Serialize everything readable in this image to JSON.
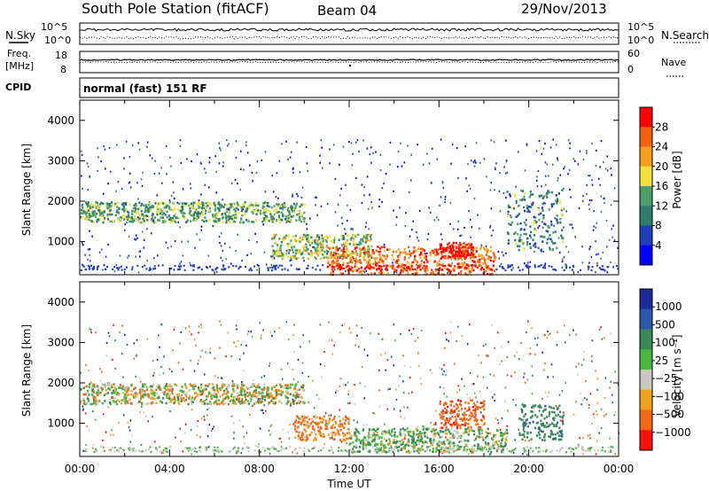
{
  "header": {
    "station": "South Pole Station (fitACF)",
    "beam": "Beam 04",
    "date": "29/Nov/2013"
  },
  "top_panels": {
    "nsky_label": "N.Sky",
    "nsearch_label": "N.Search",
    "nsky_ticks": [
      "10^5",
      "10^0"
    ],
    "nsearch_ticks": [
      "10^5",
      "10^0"
    ],
    "freq_label_1": "Freq.",
    "freq_label_2": "[MHz]",
    "freq_ticks": [
      "18",
      "8"
    ],
    "nave_label": "Nave",
    "nave_ticks": [
      "60",
      "0"
    ],
    "cpid_label": "CPID",
    "cpid_value": "normal (fast) 151 RF"
  },
  "chart_data": [
    {
      "type": "heatmap",
      "name": "power",
      "xlabel": "",
      "ylabel": "Slant Range [km]",
      "x_range_hours": [
        0,
        24
      ],
      "ylim": [
        180,
        4500
      ],
      "yticks": [
        1000,
        2000,
        3000,
        4000
      ],
      "colorbar_label": "Power [dB]",
      "colorbar_ticks": [
        "28",
        "24",
        "20",
        "16",
        "12",
        "8",
        "4"
      ],
      "colorscale": [
        "#0000ff",
        "#1e3fb8",
        "#2e7d6a",
        "#4aa066",
        "#f0e040",
        "#f7a020",
        "#f46010",
        "#ff0000"
      ],
      "features": [
        {
          "t_start": 0.0,
          "t_end": 10.0,
          "range_low": 1500,
          "range_high": 2000,
          "level": 14
        },
        {
          "t_start": 8.5,
          "t_end": 13.0,
          "range_low": 600,
          "range_high": 1200,
          "level": 16
        },
        {
          "t_start": 11.0,
          "t_end": 18.5,
          "range_low": 200,
          "range_high": 900,
          "level": 24
        },
        {
          "t_start": 16.0,
          "t_end": 17.5,
          "range_low": 600,
          "range_high": 1000,
          "level": 28
        },
        {
          "t_start": 19.0,
          "t_end": 21.5,
          "range_low": 800,
          "range_high": 2300,
          "level": 12
        }
      ]
    },
    {
      "type": "heatmap",
      "name": "velocity",
      "xlabel": "Time UT",
      "ylabel": "Slant Range [km]",
      "x_range_hours": [
        0,
        24
      ],
      "xticks": [
        "00:00",
        "04:00",
        "08:00",
        "12:00",
        "16:00",
        "20:00",
        "00:00"
      ],
      "ylim": [
        180,
        4500
      ],
      "yticks": [
        1000,
        2000,
        3000,
        4000
      ],
      "colorbar_label": "Velocity [m s⁻¹]",
      "colorbar_ticks": [
        "1000",
        "500",
        "100",
        "25",
        "−25",
        "−100",
        "−500",
        "−1000"
      ],
      "colorscale": [
        "#1a2a9a",
        "#2a5aa8",
        "#3a8a58",
        "#48b840",
        "#c8c8c0",
        "#f0a020",
        "#f06818",
        "#ff1010"
      ],
      "features": [
        {
          "t_start": 0.0,
          "t_end": 10.0,
          "range_low": 1500,
          "range_high": 2000,
          "velocity": 0
        },
        {
          "t_start": 9.5,
          "t_end": 12.0,
          "range_low": 600,
          "range_high": 1200,
          "velocity": -150
        },
        {
          "t_start": 12.0,
          "t_end": 19.0,
          "range_low": 300,
          "range_high": 900,
          "velocity": 80
        },
        {
          "t_start": 16.0,
          "t_end": 18.0,
          "range_low": 900,
          "range_high": 1600,
          "velocity": -400
        },
        {
          "t_start": 19.5,
          "t_end": 21.5,
          "range_low": 600,
          "range_high": 1500,
          "velocity": 400
        }
      ]
    }
  ]
}
